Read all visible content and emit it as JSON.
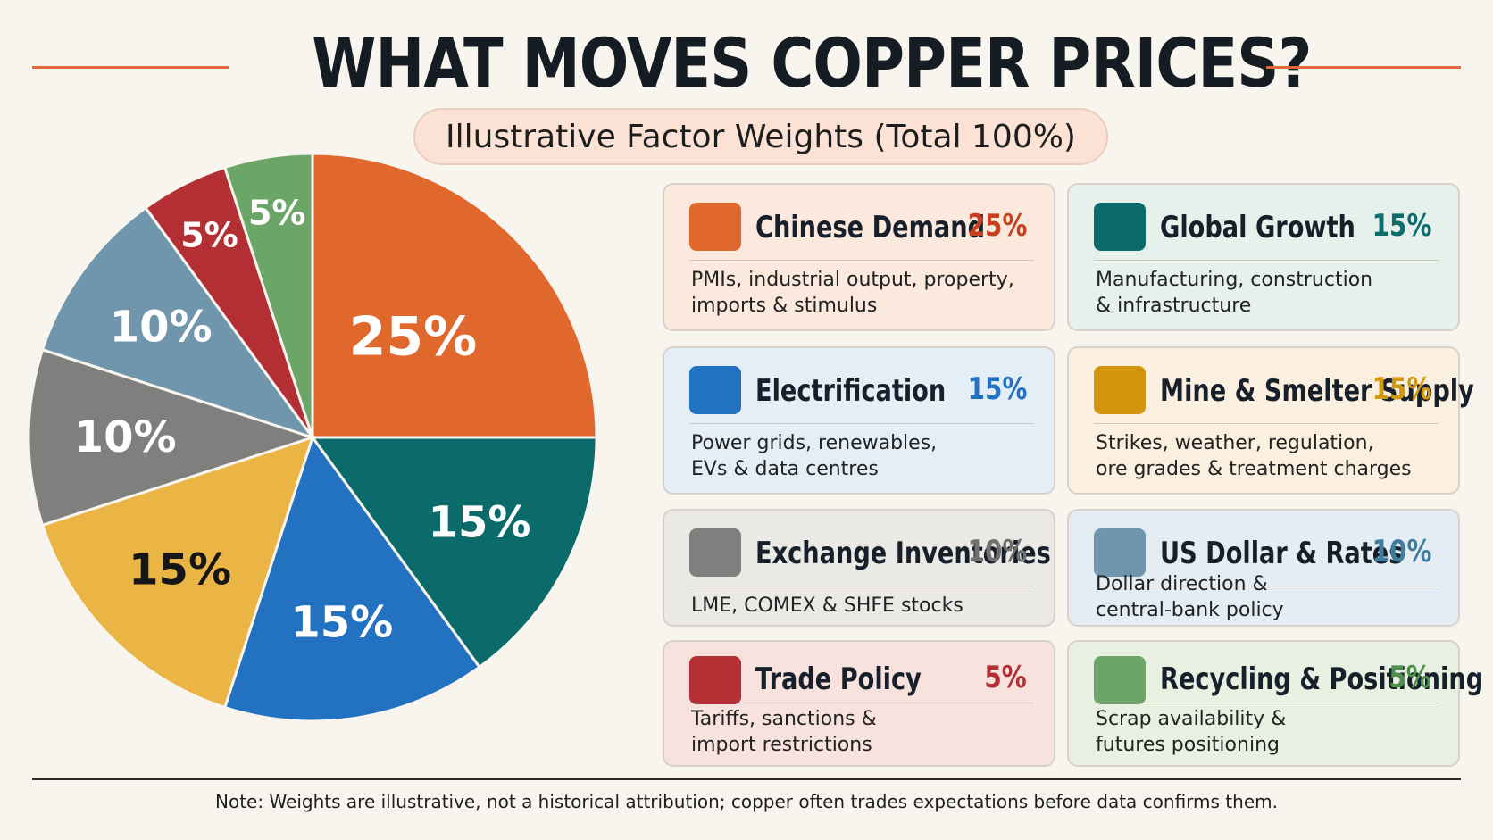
{
  "title": "WHAT MOVES COPPER PRICES?",
  "subtitle": "Illustrative Factor Weights (Total 100%)",
  "note": "Note: Weights are illustrative, not a historical attribution; copper often trades expectations before data confirms them.",
  "chart_data": {
    "type": "pie",
    "title": "WHAT MOVES COPPER PRICES?",
    "subtitle": "Illustrative Factor Weights (Total 100%)",
    "slices": [
      {
        "name": "Chinese Demand",
        "value": 25,
        "label": "25%",
        "color": "#e0682d",
        "label_color": "#ffffff"
      },
      {
        "name": "Global Growth",
        "value": 15,
        "label": "15%",
        "color": "#0b6b6b",
        "label_color": "#ffffff"
      },
      {
        "name": "Electrification",
        "value": 15,
        "label": "15%",
        "color": "#2372c2",
        "label_color": "#ffffff"
      },
      {
        "name": "Mine & Smelter Supply",
        "value": 15,
        "label": "15%",
        "color": "#eab545",
        "label_color": "#161616"
      },
      {
        "name": "Exchange Inventories",
        "value": 10,
        "label": "10%",
        "color": "#7f7f7d",
        "label_color": "#ffffff"
      },
      {
        "name": "US Dollar & Rates",
        "value": 10,
        "label": "10%",
        "color": "#7096ae",
        "label_color": "#ffffff"
      },
      {
        "name": "Trade Policy",
        "value": 5,
        "label": "5%",
        "color": "#b32f33",
        "label_color": "#ffffff"
      },
      {
        "name": "Recycling & Positioning",
        "value": 5,
        "label": "5%",
        "color": "#6ba568",
        "label_color": "#ffffff"
      }
    ]
  },
  "cards": [
    {
      "name": "Chinese Demand",
      "pct": "25%",
      "desc_1": "PMIs, industrial output, property,",
      "desc_2": "imports & stimulus",
      "color": "#e0682d",
      "pct_color": "#c8401f",
      "bg": "#fbe9dd"
    },
    {
      "name": "Global Growth",
      "pct": "15%",
      "desc_1": "Manufacturing, construction",
      "desc_2": "& infrastructure",
      "color": "#0b6b6b",
      "pct_color": "#0d6d6d",
      "bg": "#e5f1ea"
    },
    {
      "name": "Electrification",
      "pct": "15%",
      "desc_1": "Power grids, renewables,",
      "desc_2": "EVs & data centres",
      "color": "#2372c2",
      "pct_color": "#2372c2",
      "bg": "#e3eef7"
    },
    {
      "name": "Mine & Smelter Supply",
      "pct": "15%",
      "desc_1": "Strikes, weather, regulation,",
      "desc_2": "ore grades & treatment charges",
      "color": "#d3950d",
      "pct_color": "#d39a11",
      "bg": "#fbf0df"
    },
    {
      "name": "Exchange Inventories",
      "pct": "10%",
      "desc_1": "LME, COMEX & SHFE stocks",
      "desc_2": "",
      "color": "#7f7f7d",
      "pct_color": "#707070",
      "bg": "#ebe9e6"
    },
    {
      "name": "US Dollar & Rates",
      "pct": "10%",
      "desc_1": "Dollar direction &",
      "desc_2": "central-bank policy",
      "color": "#7096ae",
      "pct_color": "#3f7c9f",
      "bg": "#e4edf3"
    },
    {
      "name": "Trade Policy",
      "pct": "5%",
      "desc_1": "Tariffs, sanctions &",
      "desc_2": "import restrictions",
      "color": "#b32f33",
      "pct_color": "#b32f33",
      "bg": "#f8e2de"
    },
    {
      "name": "Recycling & Positioning",
      "pct": "5%",
      "desc_1": "Scrap availability &",
      "desc_2": "futures positioning",
      "color": "#6ba568",
      "pct_color": "#4f8f4d",
      "bg": "#e7f0e1"
    }
  ]
}
